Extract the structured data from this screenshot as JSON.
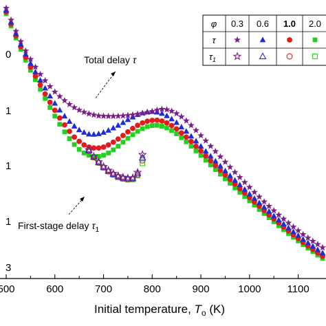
{
  "chart_data": {
    "type": "scatter",
    "xlabel_main": "Initial temperature, ",
    "xlabel_sym": "T",
    "xlabel_sub": "o",
    "xlabel_unit": " (K)",
    "xlim": [
      500,
      1150
    ],
    "x_ticks": [
      "500",
      "600",
      "700",
      "800",
      "900",
      "1000",
      "1100"
    ],
    "y_tick_labels": [
      "0",
      "1",
      "1",
      "1",
      "3"
    ],
    "log_y": true,
    "annotations": [
      {
        "text": "Total delay ",
        "sym": "τ",
        "sub": ""
      },
      {
        "text": "First-stage delay ",
        "sym": "τ",
        "sub": "1"
      }
    ],
    "legend": {
      "phi_label": "φ",
      "phi_values": [
        "0.3",
        "0.6",
        "1.0",
        "2.0"
      ],
      "rows": [
        {
          "label": "τ",
          "sub": "",
          "fill": "filled"
        },
        {
          "label": "τ",
          "sub": "1",
          "fill": "open"
        }
      ]
    },
    "colors": {
      "0.3": "#7b1f86",
      "0.6": "#1e2bd6",
      "1.0": "#e31b1b",
      "2.0": "#22d11e"
    },
    "markers": {
      "0.3": "star",
      "0.6": "triangle",
      "1.0": "circle",
      "2.0": "square"
    },
    "series": [
      {
        "phi": "0.3",
        "kind": "total",
        "x": [
          500,
          510,
          520,
          530,
          540,
          550,
          560,
          570,
          580,
          590,
          600,
          610,
          620,
          630,
          640,
          650,
          660,
          670,
          680,
          690,
          700,
          710,
          720,
          730,
          740,
          750,
          760,
          770,
          780,
          790,
          800,
          810,
          820,
          830,
          840,
          850,
          860,
          870,
          880,
          890,
          900,
          910,
          920,
          930,
          940,
          950,
          960,
          970,
          980,
          990,
          1000,
          1010,
          1020,
          1030,
          1040,
          1050,
          1060,
          1070,
          1080,
          1090,
          1100,
          1110,
          1120,
          1130,
          1140,
          1150
        ],
        "y": [
          4000,
          2650,
          1800,
          1260,
          910,
          680,
          520,
          405,
          325,
          265,
          220,
          188,
          163,
          143,
          128,
          117,
          109,
          103,
          99,
          96,
          95,
          94.5,
          94.5,
          95,
          96,
          97.5,
          99.5,
          102,
          105,
          108,
          112,
          117,
          121,
          119,
          113,
          104,
          93,
          81,
          69,
          58,
          48.5,
          40.5,
          33.5,
          28,
          23.3,
          19.4,
          16.2,
          13.6,
          11.4,
          9.6,
          8.1,
          6.8,
          5.8,
          4.9,
          4.2,
          3.6,
          3.1,
          2.7,
          2.35,
          2.05,
          1.8,
          1.58,
          1.4,
          1.25,
          1.12,
          1.0
        ]
      },
      {
        "phi": "0.6",
        "kind": "total",
        "x": [
          500,
          510,
          520,
          530,
          540,
          550,
          560,
          570,
          580,
          590,
          600,
          610,
          620,
          630,
          640,
          650,
          660,
          670,
          680,
          690,
          700,
          710,
          720,
          730,
          740,
          750,
          760,
          770,
          780,
          790,
          800,
          810,
          820,
          830,
          840,
          850,
          860,
          870,
          880,
          890,
          900,
          910,
          920,
          930,
          940,
          950,
          960,
          970,
          980,
          990,
          1000,
          1010,
          1020,
          1030,
          1040,
          1050,
          1060,
          1070,
          1080,
          1090,
          1100,
          1110,
          1120,
          1130,
          1140,
          1150
        ],
        "y": [
          3700,
          2450,
          1650,
          1140,
          810,
          590,
          440,
          330,
          250,
          190,
          148,
          117,
          95,
          79,
          67,
          59,
          54,
          51,
          50.5,
          51.5,
          54,
          58,
          63,
          69,
          76,
          84,
          92,
          100,
          106,
          110,
          111,
          109,
          104,
          96,
          86,
          76,
          65,
          56,
          47.5,
          40,
          33.5,
          28.2,
          23.8,
          20,
          16.9,
          14.3,
          12.1,
          10.3,
          8.8,
          7.5,
          6.4,
          5.5,
          4.7,
          4.05,
          3.5,
          3.0,
          2.6,
          2.27,
          1.98,
          1.73,
          1.52,
          1.33,
          1.18,
          1.05,
          0.93,
          0.83
        ]
      },
      {
        "phi": "1.0",
        "kind": "total",
        "x": [
          500,
          510,
          520,
          530,
          540,
          550,
          560,
          570,
          580,
          590,
          600,
          610,
          620,
          630,
          640,
          650,
          660,
          670,
          680,
          690,
          700,
          710,
          720,
          730,
          740,
          750,
          760,
          770,
          780,
          790,
          800,
          810,
          820,
          830,
          840,
          850,
          860,
          870,
          880,
          890,
          900,
          910,
          920,
          930,
          940,
          950,
          960,
          970,
          980,
          990,
          1000,
          1010,
          1020,
          1030,
          1040,
          1050,
          1060,
          1070,
          1080,
          1090,
          1100,
          1110,
          1120,
          1130,
          1140,
          1150
        ],
        "y": [
          3500,
          2300,
          1530,
          1050,
          730,
          520,
          380,
          280,
          205,
          153,
          116,
          89,
          70,
          56,
          46,
          39.5,
          35,
          32.5,
          31.5,
          31.5,
          32.5,
          35,
          38.5,
          43,
          48.5,
          55,
          62,
          69,
          75,
          79.5,
          82,
          82.5,
          80,
          75,
          68.5,
          61,
          53,
          46,
          39.5,
          33.5,
          28.5,
          24,
          20.3,
          17.2,
          14.6,
          12.4,
          10.6,
          9.0,
          7.7,
          6.6,
          5.65,
          4.85,
          4.2,
          3.6,
          3.1,
          2.7,
          2.35,
          2.05,
          1.78,
          1.56,
          1.37,
          1.2,
          1.06,
          0.94,
          0.83,
          0.74
        ]
      },
      {
        "phi": "2.0",
        "kind": "total",
        "x": [
          500,
          510,
          520,
          530,
          540,
          550,
          560,
          570,
          580,
          590,
          600,
          610,
          620,
          630,
          640,
          650,
          660,
          670,
          680,
          690,
          700,
          710,
          720,
          730,
          740,
          750,
          760,
          770,
          780,
          790,
          800,
          810,
          820,
          830,
          840,
          850,
          860,
          870,
          880,
          890,
          900,
          910,
          920,
          930,
          940,
          950,
          960,
          970,
          980,
          990,
          1000,
          1010,
          1020,
          1030,
          1040,
          1050,
          1060,
          1070,
          1080,
          1090,
          1100,
          1110,
          1120,
          1130,
          1140,
          1150
        ],
        "y": [
          3300,
          2150,
          1420,
          960,
          660,
          465,
          335,
          240,
          175,
          128,
          95,
          71.5,
          55,
          43.5,
          35.5,
          30,
          26.5,
          24.5,
          23.5,
          23.5,
          24.5,
          26.5,
          29.5,
          33.5,
          38.5,
          44,
          50,
          56,
          61.5,
          66,
          68.5,
          69,
          67,
          63,
          57.5,
          51.5,
          45,
          39,
          33.5,
          28.5,
          24.3,
          20.6,
          17.5,
          14.9,
          12.7,
          10.8,
          9.25,
          7.9,
          6.8,
          5.85,
          5.05,
          4.35,
          3.75,
          3.25,
          2.82,
          2.45,
          2.13,
          1.86,
          1.63,
          1.43,
          1.26,
          1.11,
          0.98,
          0.87,
          0.77,
          0.69
        ]
      },
      {
        "phi": "0.3",
        "kind": "first-stage",
        "x": [
          670,
          680,
          690,
          700,
          710,
          720,
          730,
          740,
          750,
          760,
          770,
          780
        ],
        "y": [
          29.5,
          23.5,
          19.5,
          16.5,
          14.5,
          13.0,
          12.0,
          11.4,
          11.1,
          11.2,
          13.5,
          25.0
        ]
      },
      {
        "phi": "0.6",
        "kind": "first-stage",
        "x": [
          670,
          680,
          690,
          700,
          710,
          720,
          730,
          740,
          750,
          760,
          770,
          780
        ],
        "y": [
          29.0,
          23.2,
          19.2,
          16.3,
          14.3,
          12.8,
          11.8,
          11.2,
          10.9,
          11.0,
          13.0,
          22.5
        ]
      },
      {
        "phi": "1.0",
        "kind": "first-stage",
        "x": [
          670,
          680,
          690,
          700,
          710,
          720,
          730,
          740,
          750,
          760,
          770,
          780
        ],
        "y": [
          28.6,
          22.9,
          19.0,
          16.1,
          14.1,
          12.6,
          11.6,
          11.0,
          10.7,
          10.8,
          12.5,
          20.5
        ]
      },
      {
        "phi": "2.0",
        "kind": "first-stage",
        "x": [
          670,
          680,
          690,
          700,
          710,
          720,
          730,
          740,
          750,
          760,
          770,
          780
        ],
        "y": [
          28.3,
          22.7,
          18.8,
          15.9,
          13.9,
          12.4,
          11.4,
          10.8,
          10.5,
          10.6,
          12.1,
          18.5
        ]
      }
    ]
  }
}
